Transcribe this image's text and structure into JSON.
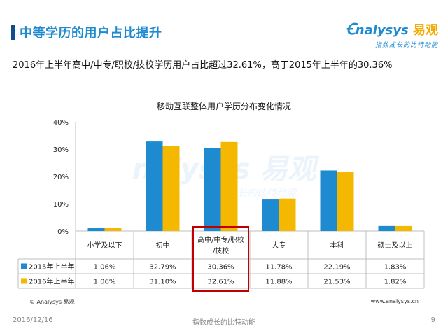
{
  "header": {
    "title": "中等学历的用户占比提升",
    "logo_text": "nalysys",
    "logo_cn": "易观",
    "logo_tagline": "指数成长的比特动能"
  },
  "subtitle": "2016年上半年高中/中专/职校/技校学历用户占比超过32.61%，高于2015年上半年的30.36%",
  "chart_data": {
    "type": "bar",
    "title": "移动互联整体用户学历分布变化情况",
    "categories": [
      "小学及以下",
      "初中",
      "高中/中专/职校/技校",
      "大专",
      "本科",
      "硕士及以上"
    ],
    "category_labels": [
      [
        "小学及以下"
      ],
      [
        "初中"
      ],
      [
        "高中/中专/职校",
        "/技校"
      ],
      [
        "大专"
      ],
      [
        "本科"
      ],
      [
        "硕士及以上"
      ]
    ],
    "series": [
      {
        "name": "2015年上半年",
        "values": [
          1.06,
          32.79,
          30.36,
          11.78,
          22.19,
          1.83
        ],
        "labels": [
          "1.06%",
          "32.79%",
          "30.36%",
          "11.78%",
          "22.19%",
          "1.83%"
        ],
        "color": "#1e8ad0"
      },
      {
        "name": "2016年上半年",
        "values": [
          1.06,
          31.1,
          32.61,
          11.88,
          21.53,
          1.82
        ],
        "labels": [
          "1.06%",
          "31.10%",
          "32.61%",
          "11.88%",
          "21.53%",
          "1.82%"
        ],
        "color": "#f5b800"
      }
    ],
    "y_ticks": [
      "0%",
      "10%",
      "20%",
      "30%",
      "40%"
    ],
    "ylim": [
      0,
      40
    ],
    "highlight_category": "高中/中专/职校/技校",
    "highlight_color": "#c00000",
    "watermark": "nalysys 易观",
    "watermark_tagline": "指数成长的比特动能"
  },
  "footer": {
    "source_left": "© Analysys 易观",
    "source_right": "www.analysys.cn",
    "date": "2016/12/16",
    "slogan": "指数成长的比特动能",
    "page": "9"
  },
  "colors": {
    "accent": "#1e8ad0",
    "accent_dark": "#0b4f8f",
    "bar2015": "#1e8ad0",
    "bar2016": "#f5b800"
  }
}
